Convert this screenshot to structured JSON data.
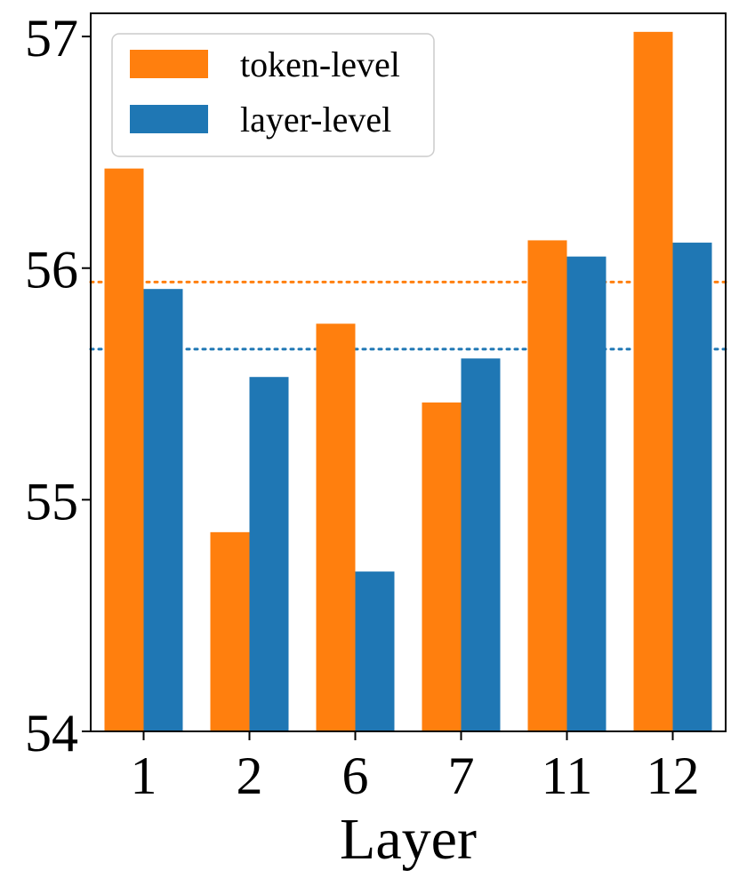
{
  "chart_data": {
    "type": "bar",
    "title": "",
    "xlabel": "Layer",
    "ylabel": "",
    "categories": [
      "1",
      "2",
      "6",
      "7",
      "11",
      "12"
    ],
    "series": [
      {
        "name": "token-level",
        "color": "#ff7f0e",
        "values": [
          56.43,
          54.86,
          55.76,
          55.42,
          56.12,
          57.02
        ]
      },
      {
        "name": "layer-level",
        "color": "#1f77b4",
        "values": [
          55.91,
          55.53,
          54.69,
          55.61,
          56.05,
          56.11
        ]
      }
    ],
    "reference_lines": [
      {
        "series": "token-level",
        "value": 55.94,
        "color": "#ff7f0e",
        "style": "dotted"
      },
      {
        "series": "layer-level",
        "value": 55.65,
        "color": "#1f77b4",
        "style": "dotted"
      }
    ],
    "ylim": [
      54,
      57.1
    ],
    "yticks": [
      "54",
      "55",
      "56",
      "57"
    ],
    "grid": false,
    "legend_position": "top-left"
  }
}
